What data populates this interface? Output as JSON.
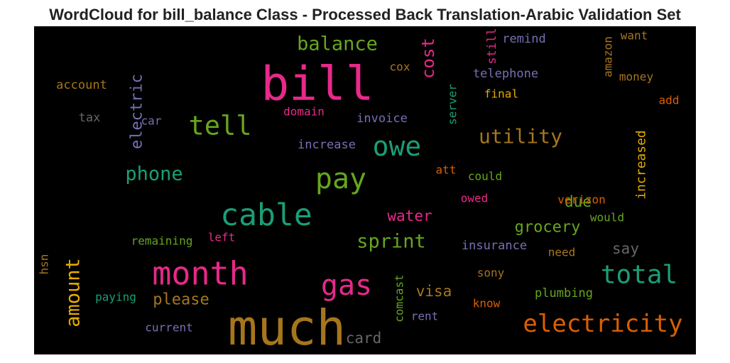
{
  "title": "WordCloud for bill_balance Class - Processed Back Translation-Arabic Validation Set",
  "words": [
    {
      "text": "bill",
      "color": "#e7298a"
    },
    {
      "text": "much",
      "color": "#a6761d"
    },
    {
      "text": "cable",
      "color": "#1b9e77"
    },
    {
      "text": "month",
      "color": "#e7298a"
    },
    {
      "text": "gas",
      "color": "#e7298a"
    },
    {
      "text": "pay",
      "color": "#66a61e"
    },
    {
      "text": "tell",
      "color": "#66a61e"
    },
    {
      "text": "owe",
      "color": "#1b9e77"
    },
    {
      "text": "total",
      "color": "#1b9e77"
    },
    {
      "text": "electricity",
      "color": "#d95f02"
    },
    {
      "text": "utility",
      "color": "#a6761d"
    },
    {
      "text": "balance",
      "color": "#66a61e"
    },
    {
      "text": "cost",
      "color": "#e7298a"
    },
    {
      "text": "phone",
      "color": "#1b9e77"
    },
    {
      "text": "sprint",
      "color": "#66a61e"
    },
    {
      "text": "amount",
      "color": "#e6ab02"
    },
    {
      "text": "electric",
      "color": "#7570b3"
    },
    {
      "text": "grocery",
      "color": "#66a61e"
    },
    {
      "text": "due",
      "color": "#66a61e"
    },
    {
      "text": "water",
      "color": "#e7298a"
    },
    {
      "text": "please",
      "color": "#a6761d"
    },
    {
      "text": "visa",
      "color": "#a6761d"
    },
    {
      "text": "say",
      "color": "#666666"
    },
    {
      "text": "card",
      "color": "#666666"
    },
    {
      "text": "increased",
      "color": "#e6ab02"
    },
    {
      "text": "amazon",
      "color": "#a6761d"
    },
    {
      "text": "still",
      "color": "#e7298a"
    },
    {
      "text": "remind",
      "color": "#7570b3"
    },
    {
      "text": "want",
      "color": "#a6761d"
    },
    {
      "text": "telephone",
      "color": "#7570b3"
    },
    {
      "text": "cox",
      "color": "#a6761d"
    },
    {
      "text": "money",
      "color": "#a6761d"
    },
    {
      "text": "final",
      "color": "#e6ab02"
    },
    {
      "text": "add",
      "color": "#d95f02"
    },
    {
      "text": "server",
      "color": "#1b9e77"
    },
    {
      "text": "account",
      "color": "#a6761d"
    },
    {
      "text": "tax",
      "color": "#666666"
    },
    {
      "text": "car",
      "color": "#7570b3"
    },
    {
      "text": "domain",
      "color": "#e7298a"
    },
    {
      "text": "invoice",
      "color": "#7570b3"
    },
    {
      "text": "increase",
      "color": "#7570b3"
    },
    {
      "text": "att",
      "color": "#d95f02"
    },
    {
      "text": "could",
      "color": "#66a61e"
    },
    {
      "text": "owed",
      "color": "#e7298a"
    },
    {
      "text": "verizon",
      "color": "#d95f02"
    },
    {
      "text": "would",
      "color": "#66a61e"
    },
    {
      "text": "left",
      "color": "#e7298a"
    },
    {
      "text": "remaining",
      "color": "#66a61e"
    },
    {
      "text": "insurance",
      "color": "#7570b3"
    },
    {
      "text": "need",
      "color": "#a6761d"
    },
    {
      "text": "hsn",
      "color": "#a6761d"
    },
    {
      "text": "sony",
      "color": "#a6761d"
    },
    {
      "text": "paying",
      "color": "#1b9e77"
    },
    {
      "text": "plumbing",
      "color": "#66a61e"
    },
    {
      "text": "comcast",
      "color": "#66a61e"
    },
    {
      "text": "know",
      "color": "#d95f02"
    },
    {
      "text": "rent",
      "color": "#7570b3"
    },
    {
      "text": "current",
      "color": "#7570b3"
    }
  ]
}
